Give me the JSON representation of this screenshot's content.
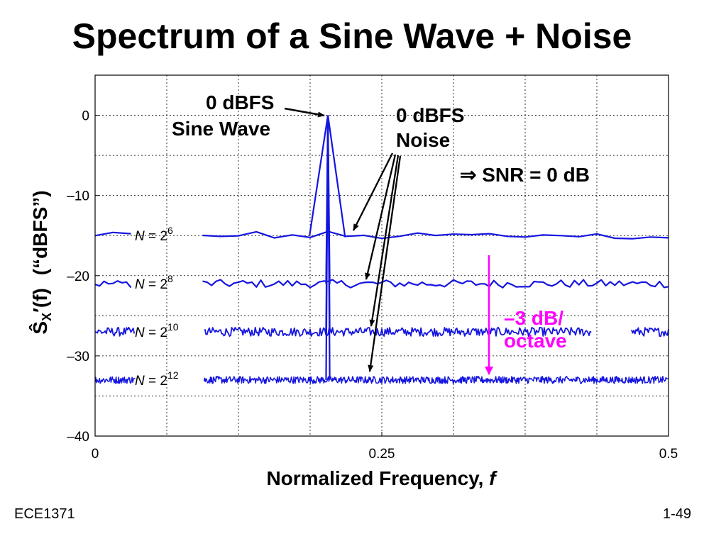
{
  "slide": {
    "title": "Spectrum of a Sine Wave + Noise",
    "footer_left": "ECE1371",
    "footer_right": "1-49"
  },
  "chart_data": {
    "type": "line",
    "xlabel": "Normalized Frequency, ",
    "xlabel_var": "f",
    "ylabel": "(“dBFS”)",
    "ylabel_symbol": "Ŝ",
    "ylabel_sub": "X",
    "ylabel_arg": "′(f)",
    "xlim": [
      0,
      0.5
    ],
    "ylim": [
      -40,
      5
    ],
    "xticks": [
      0,
      0.25,
      0.5
    ],
    "xtick_labels": [
      "0",
      "0.25",
      "0.5"
    ],
    "yticks": [
      0,
      -10,
      -20,
      -30,
      -40
    ],
    "ytick_labels": [
      "0",
      "–10",
      "–20",
      "–30",
      "–40"
    ],
    "grid": true,
    "line_color": "#1515e0",
    "signal": {
      "frequency": 0.203,
      "level": 0
    },
    "series": [
      {
        "name_var": "N",
        "name_base": " = 2",
        "name_exp": "6",
        "N": 64,
        "noise_floor": -15
      },
      {
        "name_var": "N",
        "name_base": " = 2",
        "name_exp": "8",
        "N": 256,
        "noise_floor": -21
      },
      {
        "name_var": "N",
        "name_base": " = 2",
        "name_exp": "10",
        "N": 1024,
        "noise_floor": -27
      },
      {
        "name_var": "N",
        "name_base": " = 2",
        "name_exp": "12",
        "N": 4096,
        "noise_floor": -33
      }
    ],
    "annotations": {
      "sine_line1": "0 dBFS",
      "sine_line2": "Sine Wave",
      "noise_line1": "0 dBFS",
      "noise_line2": "Noise",
      "snr": "⇒ SNR = 0 dB",
      "slope_line1": "–3 dB/",
      "slope_line2": "octave",
      "slope_color": "#ff00ff"
    }
  }
}
